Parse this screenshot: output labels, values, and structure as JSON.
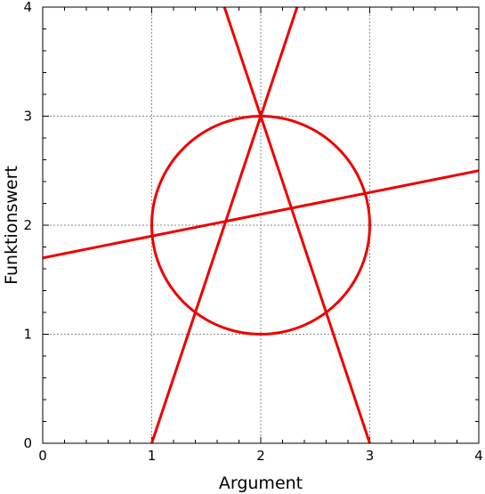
{
  "chart_data": {
    "type": "line",
    "title": "",
    "xlabel": "Argument",
    "ylabel": "Funktionswert",
    "xlim": [
      0,
      4
    ],
    "ylim": [
      0,
      4
    ],
    "xticks": [
      "0",
      "1",
      "2",
      "3",
      "4"
    ],
    "yticks": [
      "0",
      "1",
      "2",
      "3",
      "4"
    ],
    "grid": true,
    "legend": "none",
    "series_color": "#ee0000",
    "series": [
      {
        "kind": "line",
        "x": [
          0,
          4
        ],
        "y": [
          1.7,
          2.5
        ]
      },
      {
        "kind": "line",
        "x": [
          1,
          2
        ],
        "y": [
          0,
          3
        ]
      },
      {
        "kind": "line",
        "x": [
          2,
          3
        ],
        "y": [
          3,
          0
        ]
      },
      {
        "kind": "line",
        "x": [
          1.67,
          2.33
        ],
        "y": [
          4,
          4
        ]
      },
      {
        "kind": "circle",
        "center": [
          2,
          2
        ],
        "radius": 1
      }
    ]
  }
}
